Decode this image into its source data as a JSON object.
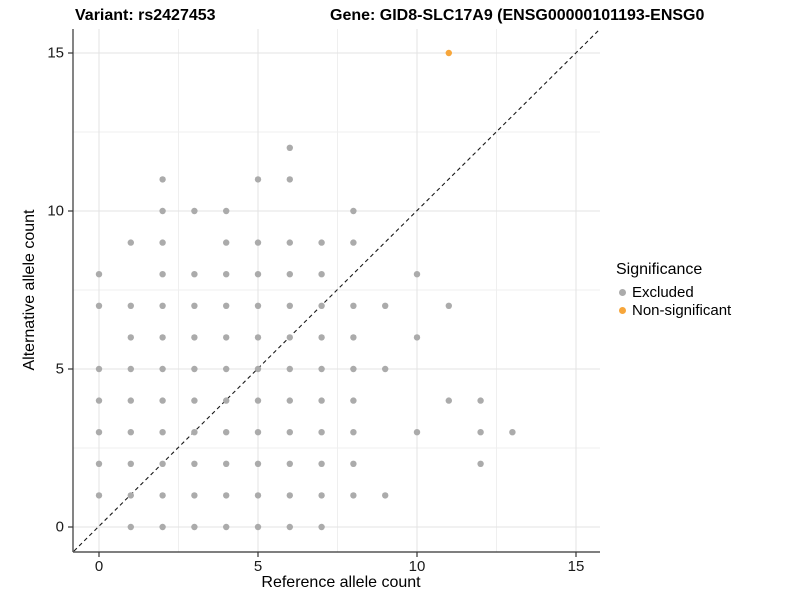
{
  "titles": {
    "variant": "Variant: rs2427453",
    "gene": "Gene: GID8-SLC17A9 (ENSG00000101193-ENSG0"
  },
  "x_axis": {
    "label": "Reference allele count",
    "tick_labels": [
      "0",
      "5",
      "10",
      "15"
    ]
  },
  "y_axis": {
    "label": "Alternative allele count",
    "tick_labels": [
      "0",
      "5",
      "10",
      "15"
    ]
  },
  "legend": {
    "title": "Significance",
    "items": [
      {
        "label": "Excluded",
        "color": "#ABABAB"
      },
      {
        "label": "Non-significant",
        "color": "#F7A63B"
      }
    ]
  },
  "chart_data": {
    "type": "scatter",
    "xlabel": "Reference allele count",
    "ylabel": "Alternative allele count",
    "xlim": [
      -0.75,
      15.75
    ],
    "ylim": [
      -0.75,
      15.75
    ],
    "x_ticks": [
      0,
      5,
      10,
      15
    ],
    "y_ticks": [
      0,
      5,
      10,
      15
    ],
    "minor_gridlines": [
      2.5,
      7.5,
      12.5
    ],
    "grid": "on",
    "legend_position": "right",
    "reference_line": {
      "style": "dashed",
      "color": "#1a1a1a",
      "equation": "y = x"
    },
    "series": [
      {
        "name": "Excluded",
        "color": "#ABABAB",
        "points": [
          [
            1,
            0
          ],
          [
            2,
            0
          ],
          [
            3,
            0
          ],
          [
            4,
            0
          ],
          [
            5,
            0
          ],
          [
            6,
            0
          ],
          [
            7,
            0
          ],
          [
            0,
            1
          ],
          [
            1,
            1
          ],
          [
            2,
            1
          ],
          [
            3,
            1
          ],
          [
            4,
            1
          ],
          [
            5,
            1
          ],
          [
            6,
            1
          ],
          [
            7,
            1
          ],
          [
            8,
            1
          ],
          [
            9,
            1
          ],
          [
            0,
            2
          ],
          [
            1,
            2
          ],
          [
            2,
            2
          ],
          [
            3,
            2
          ],
          [
            4,
            2
          ],
          [
            5,
            2
          ],
          [
            6,
            2
          ],
          [
            7,
            2
          ],
          [
            8,
            2
          ],
          [
            12,
            2
          ],
          [
            0,
            3
          ],
          [
            1,
            3
          ],
          [
            2,
            3
          ],
          [
            3,
            3
          ],
          [
            4,
            3
          ],
          [
            5,
            3
          ],
          [
            6,
            3
          ],
          [
            7,
            3
          ],
          [
            8,
            3
          ],
          [
            10,
            3
          ],
          [
            12,
            3
          ],
          [
            13,
            3
          ],
          [
            0,
            4
          ],
          [
            1,
            4
          ],
          [
            2,
            4
          ],
          [
            3,
            4
          ],
          [
            4,
            4
          ],
          [
            5,
            4
          ],
          [
            6,
            4
          ],
          [
            7,
            4
          ],
          [
            8,
            4
          ],
          [
            11,
            4
          ],
          [
            12,
            4
          ],
          [
            0,
            5
          ],
          [
            1,
            5
          ],
          [
            2,
            5
          ],
          [
            3,
            5
          ],
          [
            4,
            5
          ],
          [
            5,
            5
          ],
          [
            6,
            5
          ],
          [
            7,
            5
          ],
          [
            8,
            5
          ],
          [
            9,
            5
          ],
          [
            1,
            6
          ],
          [
            2,
            6
          ],
          [
            3,
            6
          ],
          [
            4,
            6
          ],
          [
            5,
            6
          ],
          [
            6,
            6
          ],
          [
            7,
            6
          ],
          [
            8,
            6
          ],
          [
            10,
            6
          ],
          [
            0,
            7
          ],
          [
            1,
            7
          ],
          [
            2,
            7
          ],
          [
            3,
            7
          ],
          [
            4,
            7
          ],
          [
            5,
            7
          ],
          [
            6,
            7
          ],
          [
            7,
            7
          ],
          [
            8,
            7
          ],
          [
            9,
            7
          ],
          [
            11,
            7
          ],
          [
            0,
            8
          ],
          [
            2,
            8
          ],
          [
            3,
            8
          ],
          [
            4,
            8
          ],
          [
            5,
            8
          ],
          [
            6,
            8
          ],
          [
            7,
            8
          ],
          [
            10,
            8
          ],
          [
            1,
            9
          ],
          [
            2,
            9
          ],
          [
            4,
            9
          ],
          [
            5,
            9
          ],
          [
            6,
            9
          ],
          [
            7,
            9
          ],
          [
            8,
            9
          ],
          [
            2,
            10
          ],
          [
            3,
            10
          ],
          [
            4,
            10
          ],
          [
            8,
            10
          ],
          [
            2,
            11
          ],
          [
            5,
            11
          ],
          [
            6,
            11
          ],
          [
            6,
            12
          ]
        ]
      },
      {
        "name": "Non-significant",
        "color": "#F7A63B",
        "points": [
          [
            11,
            15
          ]
        ]
      }
    ]
  }
}
